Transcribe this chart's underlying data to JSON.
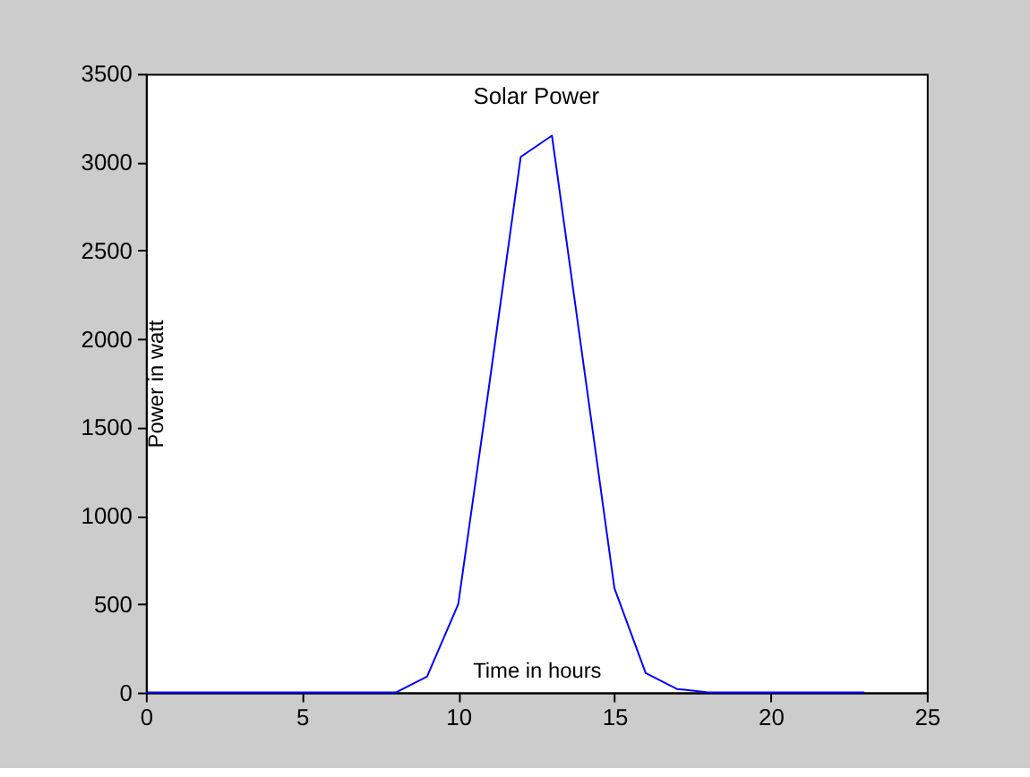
{
  "chart_data": {
    "type": "line",
    "title": "Solar Power",
    "xlabel": "Time in hours",
    "ylabel": "Power in watt",
    "x": [
      0,
      1,
      2,
      3,
      4,
      5,
      6,
      7,
      8,
      9,
      10,
      11,
      12,
      13,
      14,
      15,
      16,
      17,
      18,
      19,
      20,
      21,
      22,
      23
    ],
    "series": [
      {
        "color": "#0000ff",
        "values": [
          0,
          0,
          0,
          0,
          0,
          0,
          0,
          0,
          0,
          90,
          500,
          1750,
          3030,
          3150,
          1870,
          590,
          110,
          20,
          0,
          0,
          0,
          0,
          0,
          0
        ]
      }
    ],
    "xlim": [
      0,
      25
    ],
    "xticks": [
      0,
      5,
      10,
      15,
      20,
      25
    ],
    "ylim": [
      0,
      3500
    ],
    "yticks": [
      0,
      500,
      1000,
      1500,
      2000,
      2500,
      3000,
      3500
    ],
    "grid": false,
    "legend": false,
    "marker": "none",
    "line_style": "solid"
  }
}
